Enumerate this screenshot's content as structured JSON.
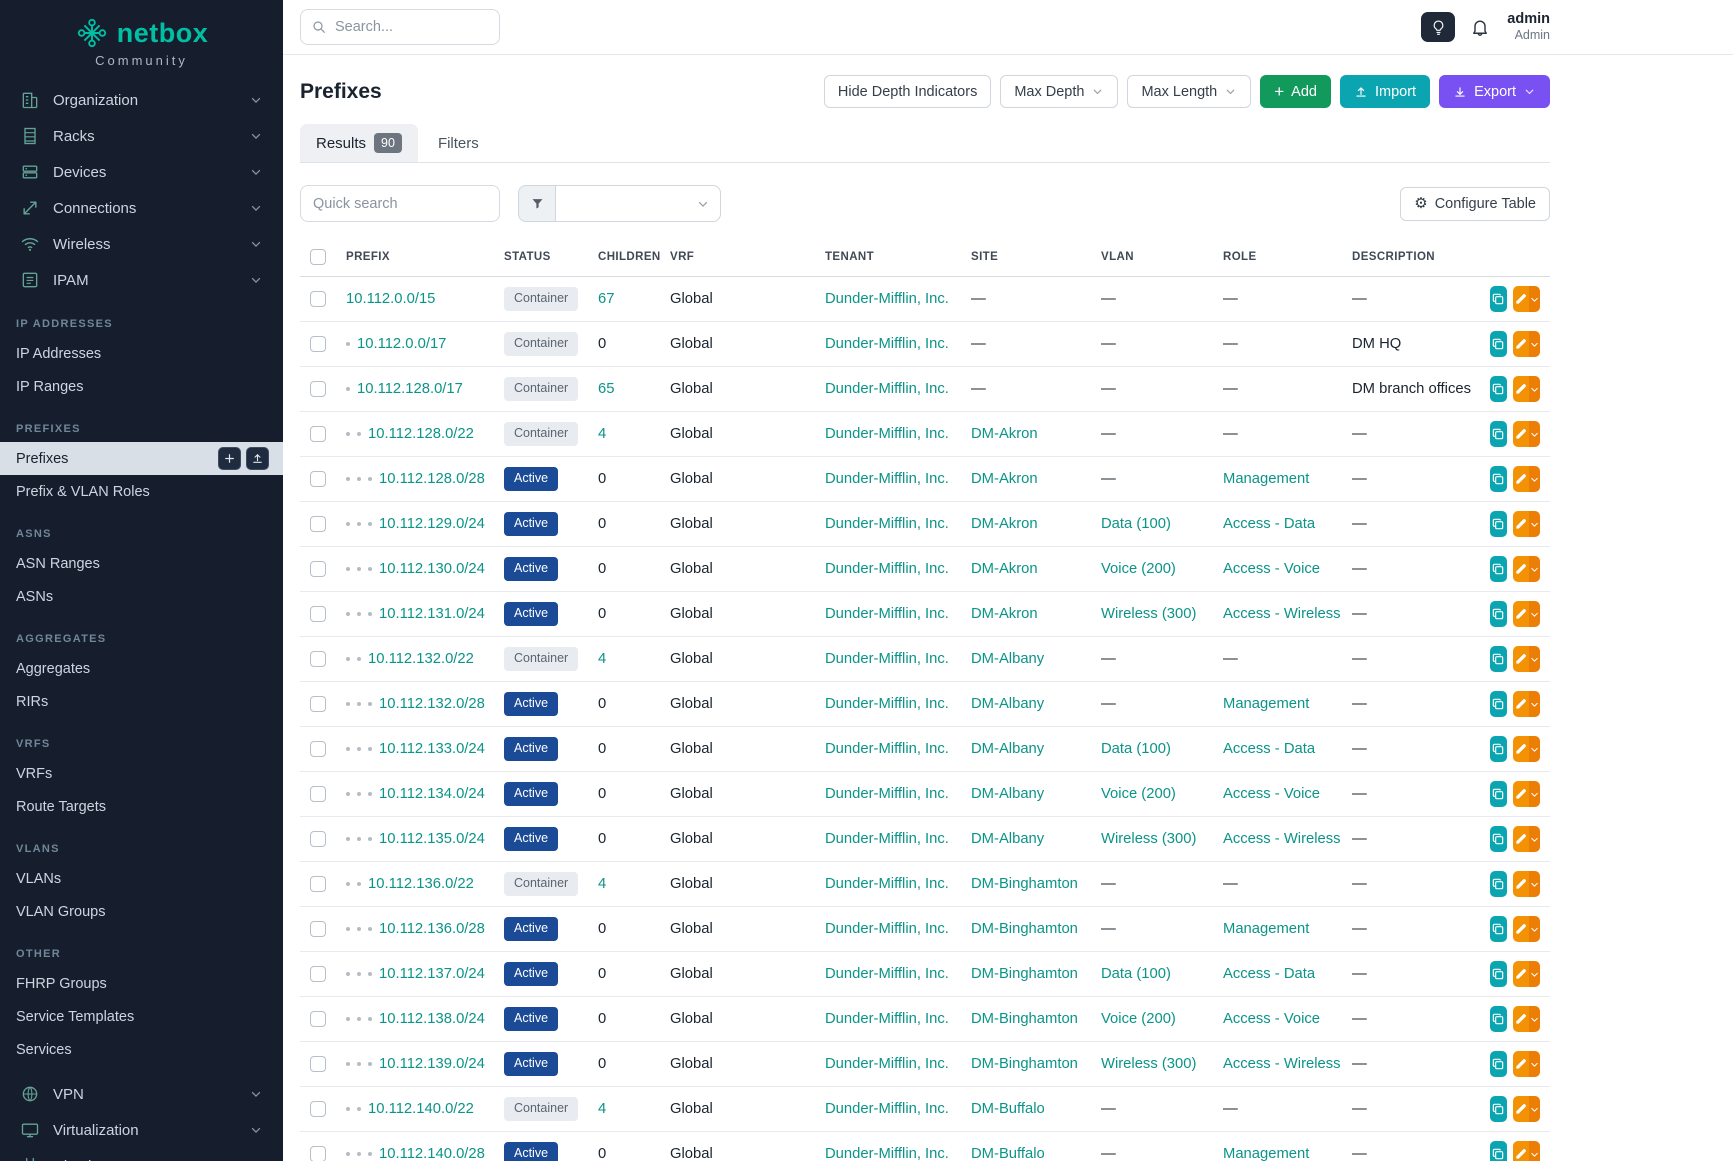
{
  "brand": {
    "name": "netbox",
    "subtitle": "Community"
  },
  "topbar": {
    "search_placeholder": "Search...",
    "user": {
      "name": "admin",
      "role": "Admin"
    }
  },
  "sidebar": {
    "nav_top": [
      {
        "id": "organization",
        "label": "Organization",
        "icon": "organization"
      },
      {
        "id": "racks",
        "label": "Racks",
        "icon": "racks"
      },
      {
        "id": "devices",
        "label": "Devices",
        "icon": "devices"
      },
      {
        "id": "connections",
        "label": "Connections",
        "icon": "connections"
      },
      {
        "id": "wireless",
        "label": "Wireless",
        "icon": "wireless"
      },
      {
        "id": "ipam",
        "label": "IPAM",
        "icon": "ipam"
      }
    ],
    "sections": [
      {
        "header": "IP ADDRESSES",
        "items": [
          {
            "label": "IP Addresses"
          },
          {
            "label": "IP Ranges"
          }
        ]
      },
      {
        "header": "PREFIXES",
        "items": [
          {
            "label": "Prefixes",
            "active": true,
            "quick_actions": [
              "add",
              "import"
            ]
          },
          {
            "label": "Prefix & VLAN Roles"
          }
        ]
      },
      {
        "header": "ASNS",
        "items": [
          {
            "label": "ASN Ranges"
          },
          {
            "label": "ASNs"
          }
        ]
      },
      {
        "header": "AGGREGATES",
        "items": [
          {
            "label": "Aggregates"
          },
          {
            "label": "RIRs"
          }
        ]
      },
      {
        "header": "VRFS",
        "items": [
          {
            "label": "VRFs"
          },
          {
            "label": "Route Targets"
          }
        ]
      },
      {
        "header": "VLANS",
        "items": [
          {
            "label": "VLANs"
          },
          {
            "label": "VLAN Groups"
          }
        ]
      },
      {
        "header": "OTHER",
        "items": [
          {
            "label": "FHRP Groups"
          },
          {
            "label": "Service Templates"
          },
          {
            "label": "Services"
          }
        ]
      }
    ],
    "nav_bottom": [
      {
        "id": "vpn",
        "label": "VPN",
        "icon": "vpn"
      },
      {
        "id": "virtualization",
        "label": "Virtualization",
        "icon": "virtualization"
      },
      {
        "id": "circuits",
        "label": "Circuits",
        "icon": "circuits"
      }
    ]
  },
  "page": {
    "title": "Prefixes",
    "toolbar": {
      "hide_depth_label": "Hide Depth Indicators",
      "max_depth_label": "Max Depth",
      "max_length_label": "Max Length",
      "add_label": "Add",
      "import_label": "Import",
      "export_label": "Export"
    },
    "tabs": [
      {
        "label": "Results",
        "badge": "90",
        "active": true
      },
      {
        "label": "Filters",
        "active": false
      }
    ],
    "quick_search_placeholder": "Quick search",
    "configure_table_label": "Configure Table"
  },
  "table": {
    "columns": [
      "PREFIX",
      "STATUS",
      "CHILDREN",
      "VRF",
      "TENANT",
      "SITE",
      "VLAN",
      "ROLE",
      "DESCRIPTION"
    ],
    "empty_value": "—",
    "rows": [
      {
        "depth": 0,
        "prefix": "10.112.0.0/15",
        "status": "Container",
        "children": "67",
        "vrf": "Global",
        "tenant": "Dunder-Mifflin, Inc.",
        "site": "",
        "vlan": "",
        "role": "",
        "description": ""
      },
      {
        "depth": 1,
        "prefix": "10.112.0.0/17",
        "status": "Container",
        "children": "0",
        "vrf": "Global",
        "tenant": "Dunder-Mifflin, Inc.",
        "site": "",
        "vlan": "",
        "role": "",
        "description": "DM HQ"
      },
      {
        "depth": 1,
        "prefix": "10.112.128.0/17",
        "status": "Container",
        "children": "65",
        "vrf": "Global",
        "tenant": "Dunder-Mifflin, Inc.",
        "site": "",
        "vlan": "",
        "role": "",
        "description": "DM branch offices"
      },
      {
        "depth": 2,
        "prefix": "10.112.128.0/22",
        "status": "Container",
        "children": "4",
        "vrf": "Global",
        "tenant": "Dunder-Mifflin, Inc.",
        "site": "DM-Akron",
        "vlan": "",
        "role": "",
        "description": ""
      },
      {
        "depth": 3,
        "prefix": "10.112.128.0/28",
        "status": "Active",
        "children": "0",
        "vrf": "Global",
        "tenant": "Dunder-Mifflin, Inc.",
        "site": "DM-Akron",
        "vlan": "",
        "role": "Management",
        "description": ""
      },
      {
        "depth": 3,
        "prefix": "10.112.129.0/24",
        "status": "Active",
        "children": "0",
        "vrf": "Global",
        "tenant": "Dunder-Mifflin, Inc.",
        "site": "DM-Akron",
        "vlan": "Data (100)",
        "role": "Access - Data",
        "description": ""
      },
      {
        "depth": 3,
        "prefix": "10.112.130.0/24",
        "status": "Active",
        "children": "0",
        "vrf": "Global",
        "tenant": "Dunder-Mifflin, Inc.",
        "site": "DM-Akron",
        "vlan": "Voice (200)",
        "role": "Access - Voice",
        "description": ""
      },
      {
        "depth": 3,
        "prefix": "10.112.131.0/24",
        "status": "Active",
        "children": "0",
        "vrf": "Global",
        "tenant": "Dunder-Mifflin, Inc.",
        "site": "DM-Akron",
        "vlan": "Wireless (300)",
        "role": "Access - Wireless",
        "description": ""
      },
      {
        "depth": 2,
        "prefix": "10.112.132.0/22",
        "status": "Container",
        "children": "4",
        "vrf": "Global",
        "tenant": "Dunder-Mifflin, Inc.",
        "site": "DM-Albany",
        "vlan": "",
        "role": "",
        "description": ""
      },
      {
        "depth": 3,
        "prefix": "10.112.132.0/28",
        "status": "Active",
        "children": "0",
        "vrf": "Global",
        "tenant": "Dunder-Mifflin, Inc.",
        "site": "DM-Albany",
        "vlan": "",
        "role": "Management",
        "description": ""
      },
      {
        "depth": 3,
        "prefix": "10.112.133.0/24",
        "status": "Active",
        "children": "0",
        "vrf": "Global",
        "tenant": "Dunder-Mifflin, Inc.",
        "site": "DM-Albany",
        "vlan": "Data (100)",
        "role": "Access - Data",
        "description": ""
      },
      {
        "depth": 3,
        "prefix": "10.112.134.0/24",
        "status": "Active",
        "children": "0",
        "vrf": "Global",
        "tenant": "Dunder-Mifflin, Inc.",
        "site": "DM-Albany",
        "vlan": "Voice (200)",
        "role": "Access - Voice",
        "description": ""
      },
      {
        "depth": 3,
        "prefix": "10.112.135.0/24",
        "status": "Active",
        "children": "0",
        "vrf": "Global",
        "tenant": "Dunder-Mifflin, Inc.",
        "site": "DM-Albany",
        "vlan": "Wireless (300)",
        "role": "Access - Wireless",
        "description": ""
      },
      {
        "depth": 2,
        "prefix": "10.112.136.0/22",
        "status": "Container",
        "children": "4",
        "vrf": "Global",
        "tenant": "Dunder-Mifflin, Inc.",
        "site": "DM-Binghamton",
        "vlan": "",
        "role": "",
        "description": ""
      },
      {
        "depth": 3,
        "prefix": "10.112.136.0/28",
        "status": "Active",
        "children": "0",
        "vrf": "Global",
        "tenant": "Dunder-Mifflin, Inc.",
        "site": "DM-Binghamton",
        "vlan": "",
        "role": "Management",
        "description": ""
      },
      {
        "depth": 3,
        "prefix": "10.112.137.0/24",
        "status": "Active",
        "children": "0",
        "vrf": "Global",
        "tenant": "Dunder-Mifflin, Inc.",
        "site": "DM-Binghamton",
        "vlan": "Data (100)",
        "role": "Access - Data",
        "description": ""
      },
      {
        "depth": 3,
        "prefix": "10.112.138.0/24",
        "status": "Active",
        "children": "0",
        "vrf": "Global",
        "tenant": "Dunder-Mifflin, Inc.",
        "site": "DM-Binghamton",
        "vlan": "Voice (200)",
        "role": "Access - Voice",
        "description": ""
      },
      {
        "depth": 3,
        "prefix": "10.112.139.0/24",
        "status": "Active",
        "children": "0",
        "vrf": "Global",
        "tenant": "Dunder-Mifflin, Inc.",
        "site": "DM-Binghamton",
        "vlan": "Wireless (300)",
        "role": "Access - Wireless",
        "description": ""
      },
      {
        "depth": 2,
        "prefix": "10.112.140.0/22",
        "status": "Container",
        "children": "4",
        "vrf": "Global",
        "tenant": "Dunder-Mifflin, Inc.",
        "site": "DM-Buffalo",
        "vlan": "",
        "role": "",
        "description": ""
      },
      {
        "depth": 3,
        "prefix": "10.112.140.0/28",
        "status": "Active",
        "children": "0",
        "vrf": "Global",
        "tenant": "Dunder-Mifflin, Inc.",
        "site": "DM-Buffalo",
        "vlan": "",
        "role": "Management",
        "description": ""
      }
    ]
  },
  "colors": {
    "sidebar_bg": "#161e2e",
    "brand_teal": "#00bfa3",
    "link_teal": "#0b9488",
    "active_badge": "#1b4a96",
    "container_badge_bg": "#e8ecf0",
    "container_badge_text": "#5a6570",
    "add_green": "#12995c",
    "import_teal": "#0ba5b1",
    "export_purple": "#7950f2",
    "edit_orange": "#f49206",
    "edit_caret_orange": "#ec7d05",
    "copy_teal": "#0ba5b1",
    "nav_icon_teal": "#63a296",
    "section_header": "#6f8796",
    "active_item_bg": "#d9dfe7"
  }
}
